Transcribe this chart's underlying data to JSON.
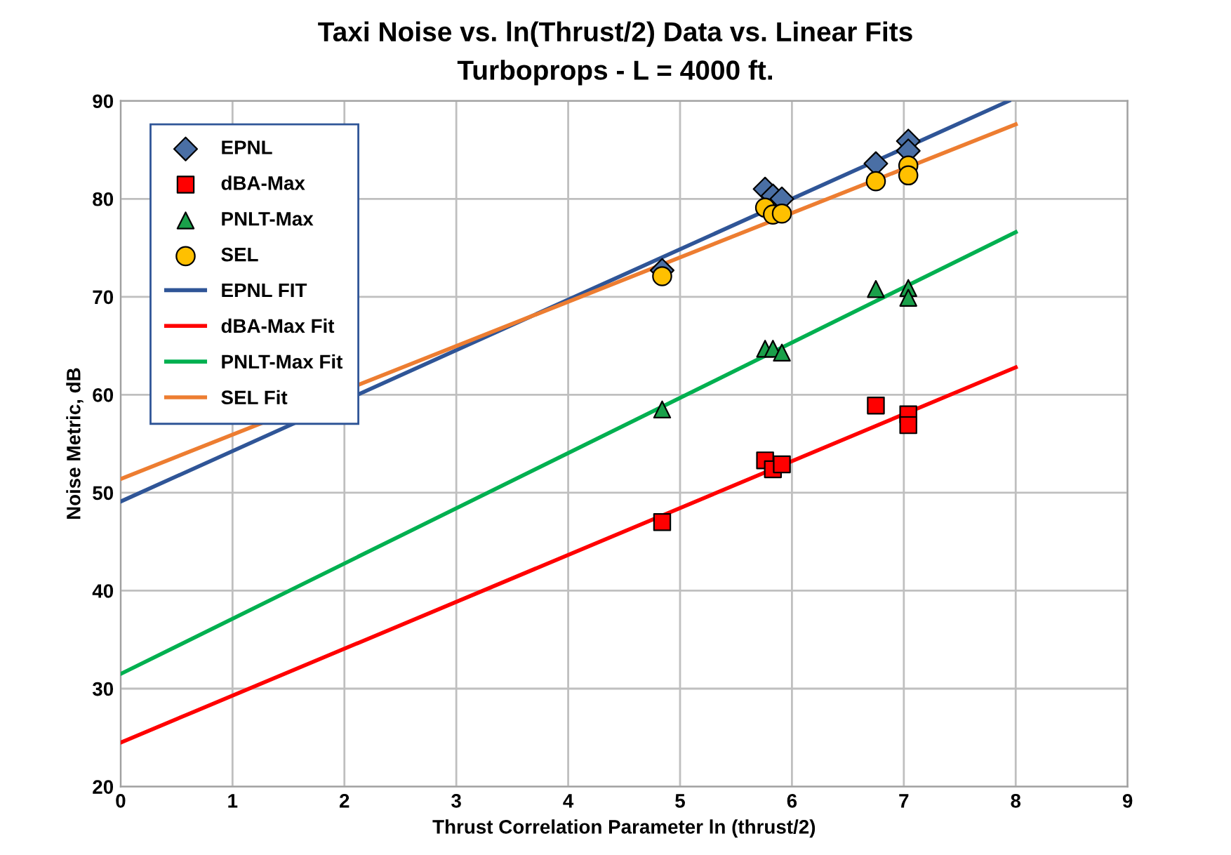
{
  "chart_data": {
    "type": "scatter",
    "title": "Taxi Noise vs. ln(Thrust/2) Data vs. Linear Fits",
    "subtitle": "Turboprops - L = 4000 ft.",
    "xlabel": "Thrust Correlation Parameter ln (thrust/2)",
    "ylabel": "Noise Metric, dB",
    "xlim": [
      0,
      9
    ],
    "xticks": [
      0,
      1,
      2,
      3,
      4,
      5,
      6,
      7,
      8,
      9
    ],
    "ylim": [
      20,
      90
    ],
    "yticks": [
      20,
      30,
      40,
      50,
      60,
      70,
      80,
      90
    ],
    "grid": true,
    "legend": "top left",
    "series": [
      {
        "name": "EPNL",
        "marker": "diamond",
        "color": "#4a6fa5",
        "x": [
          4.84,
          5.76,
          5.83,
          5.91,
          6.75,
          7.04,
          7.04
        ],
        "values": [
          72.7,
          81.0,
          80.3,
          80.0,
          83.6,
          85.9,
          84.9
        ]
      },
      {
        "name": "dBA-Max",
        "marker": "square",
        "color": "#ff0000",
        "x": [
          4.84,
          5.76,
          5.83,
          5.91,
          6.75,
          7.04,
          7.04
        ],
        "values": [
          47.0,
          53.3,
          52.4,
          52.9,
          58.9,
          58.0,
          56.9
        ]
      },
      {
        "name": "PNLT-Max",
        "marker": "triangle",
        "color": "#1aa04a",
        "x": [
          4.84,
          5.76,
          5.83,
          5.91,
          6.75,
          7.04,
          7.04
        ],
        "values": [
          58.5,
          64.7,
          64.7,
          64.3,
          70.8,
          70.9,
          69.9
        ]
      },
      {
        "name": "SEL",
        "marker": "circle",
        "color": "#ffc000",
        "x": [
          4.84,
          5.76,
          5.83,
          5.91,
          6.75,
          7.04,
          7.04
        ],
        "values": [
          72.1,
          79.1,
          78.4,
          78.5,
          81.8,
          83.4,
          82.4
        ]
      },
      {
        "name": "EPNL FIT",
        "type": "line",
        "color": "#2f5597",
        "x": [
          0,
          7.94
        ],
        "values": [
          49.1,
          90
        ]
      },
      {
        "name": "dBA-Max Fit",
        "type": "line",
        "color": "#ff0000",
        "x": [
          0,
          8
        ],
        "values": [
          24.5,
          62.8
        ]
      },
      {
        "name": "PNLT-Max Fit",
        "type": "line",
        "color": "#00b050",
        "x": [
          0,
          8
        ],
        "values": [
          31.5,
          76.6
        ]
      },
      {
        "name": "SEL Fit",
        "type": "line",
        "color": "#ed7d31",
        "x": [
          0,
          8
        ],
        "values": [
          51.4,
          87.6
        ]
      }
    ]
  }
}
